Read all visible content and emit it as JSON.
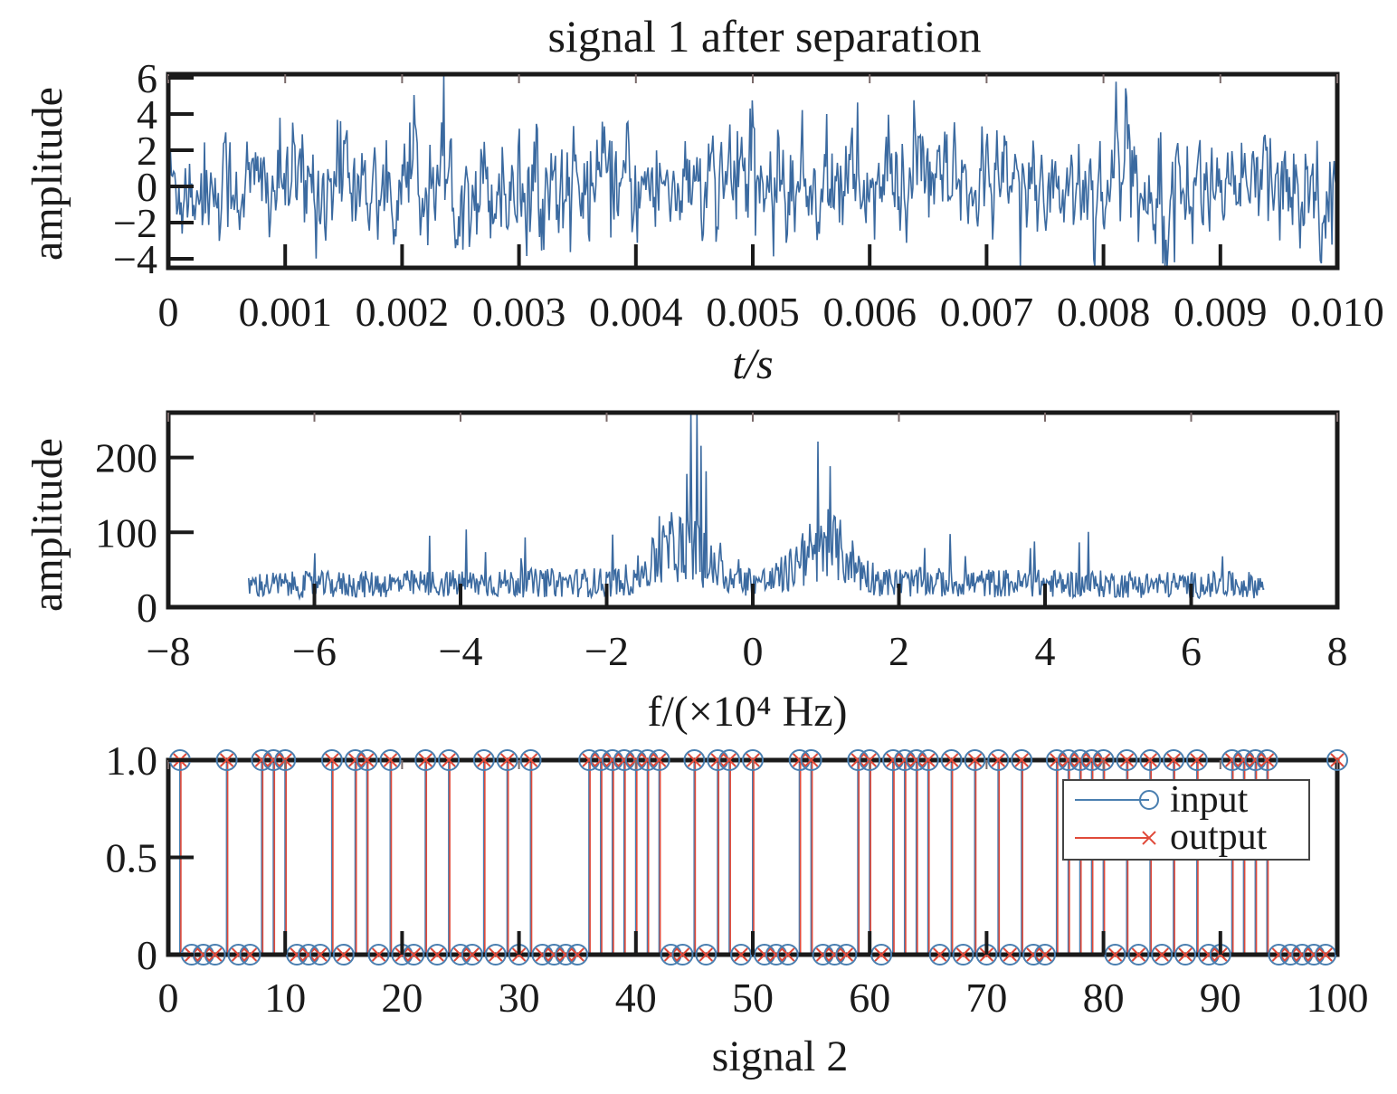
{
  "colors": {
    "signal": "#3b6aa0",
    "input": "#4a7fb0",
    "output": "#e04a3a",
    "axis": "#1a1a1a"
  },
  "chart_data": [
    {
      "type": "line",
      "title": "signal 1 after separation",
      "xlabel": "t/s",
      "ylabel": "amplitude",
      "xlim": [
        0,
        0.01
      ],
      "ylim": [
        -4.5,
        6.2
      ],
      "xticks": [
        "0",
        "0.001",
        "0.002",
        "0.003",
        "0.004",
        "0.005",
        "0.006",
        "0.007",
        "0.008",
        "0.009",
        "0.010"
      ],
      "yticks": [
        "6",
        "4",
        "2",
        "0",
        "−2",
        "−4"
      ],
      "series": [
        {
          "noise": "random",
          "points": 1100,
          "range": [
            -4.5,
            6.2
          ]
        }
      ]
    },
    {
      "type": "line",
      "title": "",
      "xlabel": "f/(×10⁴ Hz)",
      "ylabel": "amplitude",
      "xlim": [
        -8,
        8
      ],
      "ylim": [
        0,
        260
      ],
      "xticks": [
        "−8",
        "−6",
        "−4",
        "−2",
        "0",
        "2",
        "4",
        "6",
        "8"
      ],
      "yticks": [
        "200",
        "100",
        "0"
      ],
      "series": [
        {
          "x_range": [
            -6.9,
            7.0
          ],
          "peaks_at": [
            -0.8,
            0.8
          ],
          "peak_max": 260,
          "baseline": 40
        }
      ]
    },
    {
      "type": "scatter",
      "title": "",
      "xlabel": "signal 2",
      "ylabel": "",
      "xlim": [
        0,
        100
      ],
      "ylim": [
        0,
        1.0
      ],
      "xticks": [
        "0",
        "10",
        "20",
        "30",
        "40",
        "50",
        "60",
        "70",
        "80",
        "90",
        "100"
      ],
      "yticks": [
        "1.0",
        "0.5",
        "0"
      ],
      "legend": {
        "placement": "top-right",
        "entries": [
          "input",
          "output"
        ]
      },
      "series": [
        {
          "name": "input",
          "x": [
            1,
            2,
            3,
            4,
            5,
            6,
            7,
            8,
            9,
            10,
            11,
            12,
            13,
            14,
            15,
            16,
            17,
            18,
            19,
            20,
            21,
            22,
            23,
            24,
            25,
            26,
            27,
            28,
            29,
            30,
            31,
            32,
            33,
            34,
            35,
            36,
            37,
            38,
            39,
            40,
            41,
            42,
            43,
            44,
            45,
            46,
            47,
            48,
            49,
            50,
            51,
            52,
            53,
            54,
            55,
            56,
            57,
            58,
            59,
            60,
            61,
            62,
            63,
            64,
            65,
            66,
            67,
            68,
            69,
            70,
            71,
            72,
            73,
            74,
            75,
            76,
            77,
            78,
            79,
            80,
            81,
            82,
            83,
            84,
            85,
            86,
            87,
            88,
            89,
            90,
            91,
            92,
            93,
            94,
            95,
            96,
            97,
            98,
            99,
            100
          ],
          "values": [
            1,
            0,
            0,
            0,
            1,
            0,
            0,
            1,
            1,
            1,
            0,
            0,
            0,
            1,
            0,
            1,
            1,
            0,
            1,
            0,
            0,
            1,
            0,
            1,
            0,
            0,
            1,
            0,
            1,
            0,
            1,
            0,
            0,
            0,
            0,
            1,
            1,
            1,
            1,
            1,
            1,
            1,
            0,
            0,
            1,
            0,
            1,
            1,
            0,
            1,
            0,
            0,
            0,
            1,
            1,
            0,
            0,
            0,
            1,
            1,
            0,
            1,
            1,
            1,
            1,
            0,
            1,
            0,
            1,
            0,
            1,
            0,
            1,
            0,
            0,
            1,
            1,
            1,
            1,
            1,
            0,
            1,
            0,
            1,
            0,
            1,
            0,
            1,
            0,
            0,
            1,
            1,
            1,
            1,
            0,
            0,
            0,
            0,
            0,
            1
          ]
        },
        {
          "name": "output",
          "x": [
            1,
            2,
            3,
            4,
            5,
            6,
            7,
            8,
            9,
            10,
            11,
            12,
            13,
            14,
            15,
            16,
            17,
            18,
            19,
            20,
            21,
            22,
            23,
            24,
            25,
            26,
            27,
            28,
            29,
            30,
            31,
            32,
            33,
            34,
            35,
            36,
            37,
            38,
            39,
            40,
            41,
            42,
            43,
            44,
            45,
            46,
            47,
            48,
            49,
            50,
            51,
            52,
            53,
            54,
            55,
            56,
            57,
            58,
            59,
            60,
            61,
            62,
            63,
            64,
            65,
            66,
            67,
            68,
            69,
            70,
            71,
            72,
            73,
            74,
            75,
            76,
            77,
            78,
            79,
            80,
            81,
            82,
            83,
            84,
            85,
            86,
            87,
            88,
            89,
            90,
            91,
            92,
            93,
            94,
            95,
            96,
            97,
            98,
            99,
            100
          ],
          "values": [
            1,
            0,
            0,
            0,
            1,
            0,
            0,
            1,
            1,
            1,
            0,
            0,
            0,
            1,
            0,
            1,
            1,
            0,
            1,
            0,
            0,
            1,
            0,
            1,
            0,
            0,
            1,
            0,
            1,
            0,
            1,
            0,
            0,
            0,
            0,
            1,
            1,
            1,
            1,
            1,
            1,
            1,
            0,
            0,
            1,
            0,
            1,
            1,
            0,
            1,
            0,
            0,
            0,
            1,
            1,
            0,
            0,
            0,
            1,
            1,
            0,
            1,
            1,
            1,
            1,
            0,
            1,
            0,
            1,
            0,
            1,
            0,
            1,
            0,
            0,
            1,
            1,
            1,
            1,
            1,
            0,
            1,
            0,
            1,
            0,
            1,
            0,
            1,
            0,
            0,
            1,
            1,
            1,
            1,
            0,
            0,
            0,
            0,
            0,
            1
          ]
        }
      ]
    }
  ]
}
